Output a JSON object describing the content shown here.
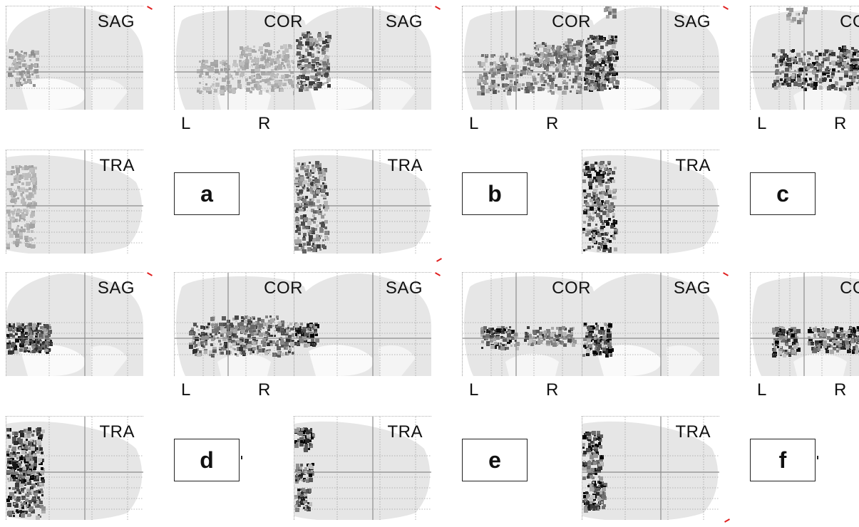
{
  "views": {
    "sag": "SAG",
    "cor": "COR",
    "tra": "TRA",
    "left": "L",
    "right": "R"
  },
  "panels": [
    {
      "letter": "a"
    },
    {
      "letter": "b"
    },
    {
      "letter": "c"
    },
    {
      "letter": "d"
    },
    {
      "letter": "e"
    },
    {
      "letter": "f"
    }
  ],
  "colors": {
    "brain_fill": "#e6e6e6",
    "grid": "#a0a0a0",
    "crosshair": "#8c8c8c",
    "marker": "#e02020"
  }
}
